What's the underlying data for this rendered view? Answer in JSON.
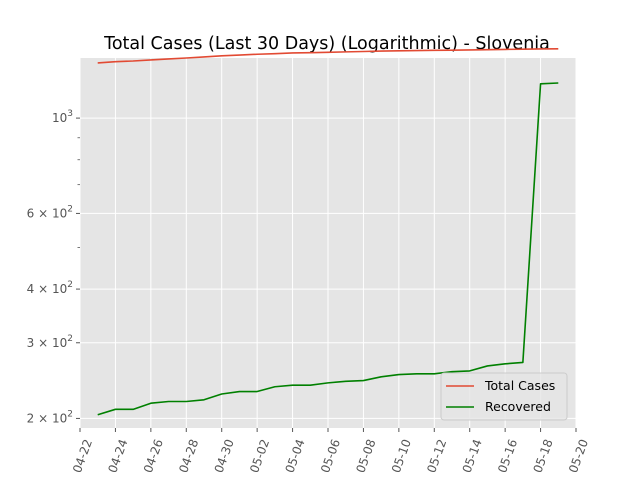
{
  "chart_data": {
    "type": "line",
    "title": "Total Cases (Last 30 Days) (Logarithmic) - Slovenia",
    "xlabel": "",
    "ylabel": "",
    "yscale": "log",
    "xlim": [
      "2020-04-22",
      "2020-05-20"
    ],
    "ylim": [
      190,
      1380
    ],
    "grid": true,
    "legend_position": "lower-right",
    "x_ticks": [
      "04-22",
      "04-24",
      "04-26",
      "04-28",
      "04-30",
      "05-02",
      "05-04",
      "05-06",
      "05-08",
      "05-10",
      "05-12",
      "05-14",
      "05-16",
      "05-18",
      "05-20"
    ],
    "y_ticks": [
      {
        "value": 200,
        "base": "2",
        "exp": "2"
      },
      {
        "value": 300,
        "base": "3",
        "exp": "2"
      },
      {
        "value": 400,
        "base": "4",
        "exp": "2"
      },
      {
        "value": 600,
        "base": "6",
        "exp": "2"
      },
      {
        "value": 1000,
        "base": "",
        "exp": "3"
      }
    ],
    "x": [
      "2020-04-23",
      "2020-04-24",
      "2020-04-25",
      "2020-04-26",
      "2020-04-27",
      "2020-04-28",
      "2020-04-29",
      "2020-04-30",
      "2020-05-01",
      "2020-05-02",
      "2020-05-03",
      "2020-05-04",
      "2020-05-05",
      "2020-05-06",
      "2020-05-07",
      "2020-05-08",
      "2020-05-09",
      "2020-05-10",
      "2020-05-11",
      "2020-05-12",
      "2020-05-13",
      "2020-05-14",
      "2020-05-15",
      "2020-05-16",
      "2020-05-17",
      "2020-05-18",
      "2020-05-19"
    ],
    "series": [
      {
        "name": "Total Cases",
        "color": "#E24A33",
        "values": [
          1344,
          1353,
          1358,
          1366,
          1373,
          1380,
          1388,
          1396,
          1402,
          1408,
          1412,
          1418,
          1420,
          1423,
          1426,
          1429,
          1432,
          1434,
          1436,
          1438,
          1439,
          1441,
          1443,
          1445,
          1447,
          1449,
          1450
        ]
      },
      {
        "name": "Recovered",
        "color": "#008000",
        "values": [
          204,
          210,
          210,
          217,
          219,
          219,
          221,
          228,
          231,
          231,
          237,
          239,
          239,
          242,
          244,
          245,
          250,
          253,
          254,
          254,
          257,
          258,
          265,
          268,
          270,
          1202,
          1207
        ]
      }
    ],
    "background_color": "#E5E5E5",
    "grid_color": "#FFFFFF"
  }
}
